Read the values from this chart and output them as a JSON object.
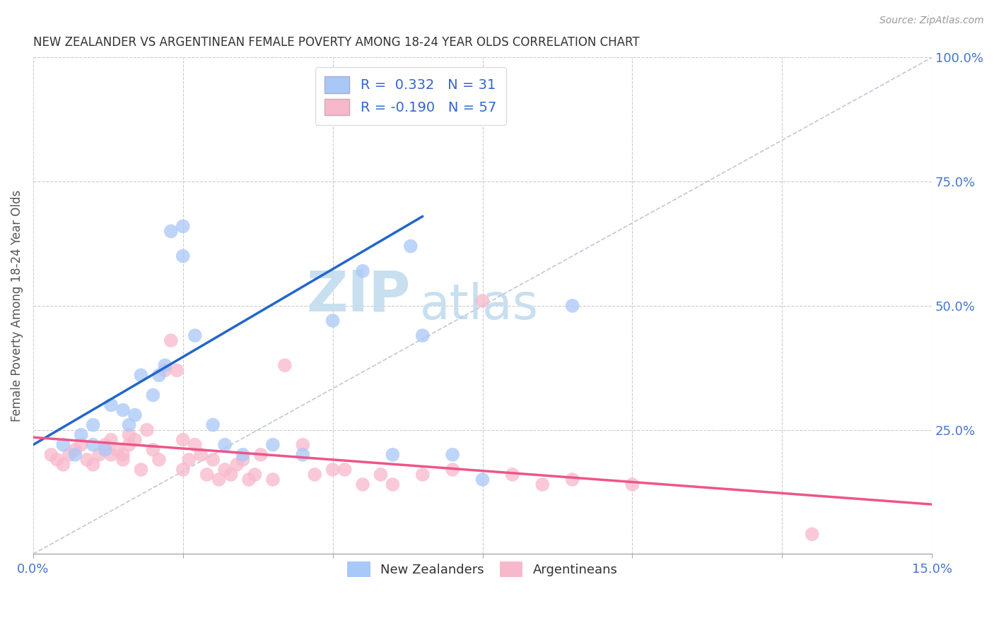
{
  "title": "NEW ZEALANDER VS ARGENTINEAN FEMALE POVERTY AMONG 18-24 YEAR OLDS CORRELATION CHART",
  "source": "Source: ZipAtlas.com",
  "ylabel": "Female Poverty Among 18-24 Year Olds",
  "xlim": [
    0.0,
    0.15
  ],
  "ylim": [
    0.0,
    1.0
  ],
  "xticklabels": [
    "0.0%",
    "",
    "",
    "",
    "",
    "",
    "15.0%"
  ],
  "yticks_right": [
    0.0,
    0.25,
    0.5,
    0.75,
    1.0
  ],
  "ytick_right_labels": [
    "",
    "25.0%",
    "50.0%",
    "75.0%",
    "100.0%"
  ],
  "nz_color": "#a8c8f8",
  "arg_color": "#f8b8cc",
  "nz_line_color": "#2266cc",
  "arg_line_color": "#ee5588",
  "ref_line_color": "#c0c8d8",
  "legend_r_nz": "0.332",
  "legend_n_nz": "31",
  "legend_r_arg": "-0.190",
  "legend_n_arg": "57",
  "watermark_zip": "ZIP",
  "watermark_atlas": "atlas",
  "watermark_color": "#c8dff0",
  "background_color": "#ffffff",
  "nz_x": [
    0.005,
    0.007,
    0.008,
    0.01,
    0.01,
    0.012,
    0.013,
    0.015,
    0.016,
    0.017,
    0.018,
    0.02,
    0.021,
    0.022,
    0.023,
    0.025,
    0.025,
    0.027,
    0.03,
    0.032,
    0.035,
    0.04,
    0.045,
    0.05,
    0.055,
    0.06,
    0.063,
    0.065,
    0.07,
    0.075,
    0.09
  ],
  "nz_y": [
    0.22,
    0.2,
    0.24,
    0.22,
    0.26,
    0.21,
    0.3,
    0.29,
    0.26,
    0.28,
    0.36,
    0.32,
    0.36,
    0.38,
    0.65,
    0.66,
    0.6,
    0.44,
    0.26,
    0.22,
    0.2,
    0.22,
    0.2,
    0.47,
    0.57,
    0.2,
    0.62,
    0.44,
    0.2,
    0.15,
    0.5
  ],
  "arg_x": [
    0.003,
    0.004,
    0.005,
    0.006,
    0.007,
    0.008,
    0.009,
    0.01,
    0.011,
    0.012,
    0.013,
    0.013,
    0.014,
    0.015,
    0.015,
    0.016,
    0.016,
    0.017,
    0.018,
    0.019,
    0.02,
    0.021,
    0.022,
    0.023,
    0.024,
    0.025,
    0.025,
    0.026,
    0.027,
    0.028,
    0.029,
    0.03,
    0.031,
    0.032,
    0.033,
    0.034,
    0.035,
    0.036,
    0.037,
    0.038,
    0.04,
    0.042,
    0.045,
    0.047,
    0.05,
    0.052,
    0.055,
    0.058,
    0.06,
    0.065,
    0.07,
    0.075,
    0.08,
    0.085,
    0.09,
    0.1,
    0.13
  ],
  "arg_y": [
    0.2,
    0.19,
    0.18,
    0.2,
    0.21,
    0.22,
    0.19,
    0.18,
    0.2,
    0.22,
    0.2,
    0.23,
    0.21,
    0.19,
    0.2,
    0.22,
    0.24,
    0.23,
    0.17,
    0.25,
    0.21,
    0.19,
    0.37,
    0.43,
    0.37,
    0.17,
    0.23,
    0.19,
    0.22,
    0.2,
    0.16,
    0.19,
    0.15,
    0.17,
    0.16,
    0.18,
    0.19,
    0.15,
    0.16,
    0.2,
    0.15,
    0.38,
    0.22,
    0.16,
    0.17,
    0.17,
    0.14,
    0.16,
    0.14,
    0.16,
    0.17,
    0.51,
    0.16,
    0.14,
    0.15,
    0.14,
    0.04
  ],
  "nz_line_x0": 0.0,
  "nz_line_y0": 0.22,
  "nz_line_x1": 0.065,
  "nz_line_y1": 0.68,
  "arg_line_x0": 0.0,
  "arg_line_y0": 0.235,
  "arg_line_x1": 0.15,
  "arg_line_y1": 0.1
}
